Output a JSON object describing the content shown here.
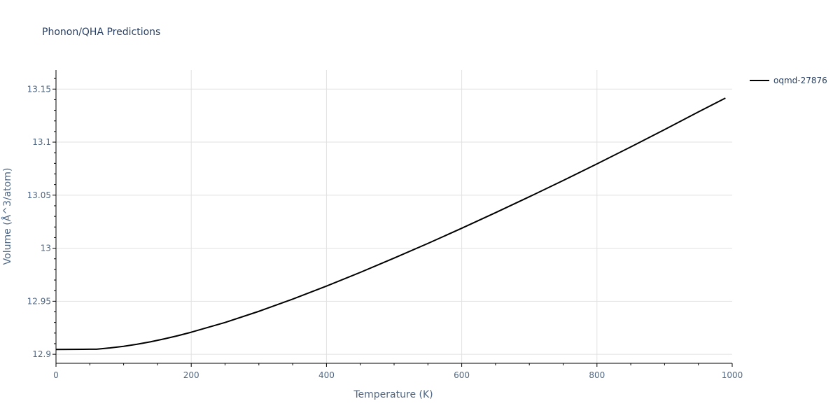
{
  "chart_data": {
    "type": "line",
    "title": "Phonon/QHA Predictions",
    "xlabel": "Temperature (K)",
    "ylabel": "Volume (Å^3/atom)",
    "xlim": [
      0,
      1000
    ],
    "ylim": [
      12.8915,
      13.168
    ],
    "x_ticks": [
      0,
      200,
      400,
      600,
      800,
      1000
    ],
    "x_tick_labels": [
      "0",
      "200",
      "400",
      "600",
      "800",
      "1000"
    ],
    "y_ticks": [
      12.9,
      12.95,
      13.0,
      13.05,
      13.1,
      13.15
    ],
    "y_tick_labels": [
      "12.9",
      "12.95",
      "13",
      "13.05",
      "13.1",
      "13.15"
    ],
    "grid": true,
    "legend_position": "top-right",
    "series": [
      {
        "name": "oqmd-27876",
        "color": "#000000",
        "x": [
          0,
          20,
          40,
          60,
          80,
          100,
          120,
          140,
          160,
          180,
          200,
          250,
          300,
          350,
          400,
          450,
          500,
          550,
          600,
          650,
          700,
          750,
          800,
          850,
          900,
          950,
          990
        ],
        "y": [
          12.9045,
          12.9046,
          12.9047,
          12.9048,
          12.906,
          12.9075,
          12.9095,
          12.9118,
          12.9145,
          12.9175,
          12.9208,
          12.93,
          12.9405,
          12.952,
          12.9643,
          12.9772,
          12.9907,
          13.0045,
          13.0188,
          13.0335,
          13.0485,
          13.0638,
          13.0795,
          13.0955,
          13.1118,
          13.1285,
          13.1415
        ]
      }
    ]
  }
}
